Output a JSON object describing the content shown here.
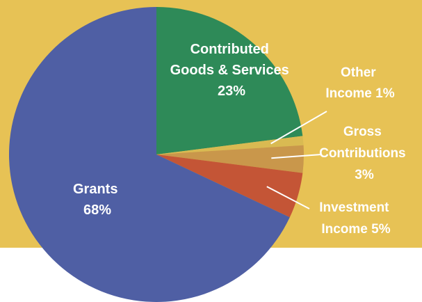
{
  "chart_data": {
    "type": "pie",
    "title": "",
    "slices": [
      {
        "key": "contributed",
        "lines": [
          "Contributed",
          "Goods & Services",
          "23%"
        ],
        "value": 23,
        "color": "#2e8a58"
      },
      {
        "key": "other",
        "lines": [
          "Other",
          "Income 1%"
        ],
        "value": 1,
        "color": "#d9ba52"
      },
      {
        "key": "gross",
        "lines": [
          "Gross",
          "Contributions",
          "3%"
        ],
        "value": 3,
        "color": "#c9974b"
      },
      {
        "key": "investment",
        "lines": [
          "Investment",
          "Income 5%"
        ],
        "value": 5,
        "color": "#c45536"
      },
      {
        "key": "grants",
        "lines": [
          "Grants",
          "68%"
        ],
        "value": 68,
        "color": "#4f5fa4"
      }
    ],
    "start_direction": "top",
    "order": "clockwise",
    "legend": "none"
  }
}
